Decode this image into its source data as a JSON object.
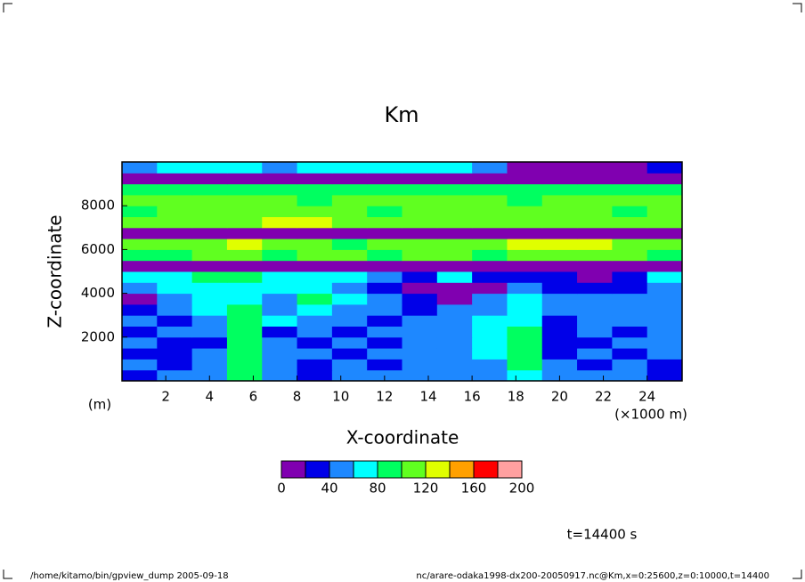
{
  "chart_data": {
    "type": "contourf",
    "title": "Km",
    "xlabel": "X-coordinate",
    "ylabel": "Z-coordinate",
    "xunit": "(×1000 m)",
    "yunit": "(m)",
    "time_label": "t=14400 s",
    "footer_left": "/home/kitamo/bin/gpview_dump  2005-09-18",
    "footer_right": "nc/arare-odaka1998-dx200-20050917.nc@Km,x=0:25600,z=0:10000,t=14400",
    "xlim": [
      0,
      25.6
    ],
    "ylim": [
      0,
      10000
    ],
    "xticks": [
      2,
      4,
      6,
      8,
      10,
      12,
      14,
      16,
      18,
      20,
      22,
      24
    ],
    "yticks": [
      2000,
      4000,
      6000,
      8000
    ],
    "x": [
      0.8,
      2.4,
      4.0,
      5.6,
      7.2,
      8.8,
      10.4,
      12.0,
      13.6,
      15.2,
      16.8,
      18.4,
      20.0,
      21.6,
      23.2,
      24.8
    ],
    "y": [
      250,
      750,
      1250,
      1750,
      2250,
      2750,
      3250,
      3750,
      4250,
      4750,
      5250,
      5750,
      6250,
      6750,
      7250,
      7750,
      8250,
      8750,
      9250,
      9750
    ],
    "z": [
      [
        30,
        50,
        50,
        90,
        50,
        30,
        50,
        50,
        50,
        50,
        50,
        70,
        50,
        50,
        50,
        30
      ],
      [
        50,
        30,
        50,
        90,
        50,
        30,
        50,
        30,
        50,
        50,
        50,
        90,
        50,
        30,
        50,
        30
      ],
      [
        30,
        30,
        50,
        90,
        50,
        50,
        30,
        50,
        50,
        50,
        70,
        90,
        30,
        50,
        30,
        50
      ],
      [
        50,
        30,
        30,
        90,
        50,
        30,
        50,
        30,
        50,
        50,
        70,
        90,
        30,
        30,
        50,
        50
      ],
      [
        30,
        50,
        50,
        90,
        30,
        50,
        30,
        50,
        50,
        50,
        70,
        90,
        30,
        50,
        30,
        50
      ],
      [
        50,
        30,
        50,
        90,
        70,
        50,
        50,
        30,
        50,
        50,
        70,
        70,
        30,
        50,
        50,
        50
      ],
      [
        30,
        50,
        70,
        90,
        50,
        70,
        50,
        50,
        30,
        50,
        50,
        70,
        50,
        50,
        50,
        50
      ],
      [
        10,
        50,
        70,
        70,
        50,
        90,
        70,
        50,
        30,
        10,
        50,
        70,
        50,
        50,
        50,
        50
      ],
      [
        50,
        70,
        70,
        70,
        70,
        70,
        50,
        30,
        10,
        10,
        10,
        50,
        30,
        30,
        30,
        50
      ],
      [
        70,
        70,
        90,
        90,
        70,
        70,
        70,
        50,
        30,
        70,
        30,
        30,
        30,
        10,
        30,
        70
      ],
      [
        10,
        10,
        10,
        10,
        10,
        10,
        10,
        10,
        10,
        10,
        10,
        10,
        10,
        10,
        10,
        10
      ],
      [
        90,
        90,
        110,
        110,
        90,
        110,
        110,
        90,
        110,
        110,
        90,
        110,
        110,
        110,
        110,
        90
      ],
      [
        110,
        110,
        110,
        130,
        110,
        110,
        90,
        110,
        110,
        110,
        110,
        130,
        130,
        130,
        110,
        110
      ],
      [
        10,
        10,
        10,
        10,
        10,
        10,
        10,
        10,
        10,
        10,
        10,
        10,
        10,
        10,
        10,
        10
      ],
      [
        110,
        110,
        110,
        110,
        130,
        130,
        110,
        110,
        110,
        110,
        110,
        110,
        110,
        110,
        110,
        110
      ],
      [
        90,
        110,
        110,
        110,
        110,
        110,
        110,
        90,
        110,
        110,
        110,
        110,
        110,
        110,
        90,
        110
      ],
      [
        110,
        110,
        110,
        110,
        110,
        90,
        110,
        110,
        110,
        110,
        110,
        90,
        110,
        110,
        110,
        110
      ],
      [
        90,
        90,
        90,
        90,
        90,
        90,
        90,
        90,
        90,
        90,
        90,
        90,
        90,
        90,
        90,
        90
      ],
      [
        10,
        10,
        10,
        10,
        10,
        10,
        10,
        10,
        10,
        10,
        10,
        10,
        10,
        10,
        10,
        10
      ],
      [
        50,
        70,
        70,
        70,
        50,
        70,
        70,
        70,
        70,
        70,
        50,
        10,
        10,
        10,
        10,
        30
      ]
    ],
    "levels": [
      0,
      20,
      40,
      60,
      80,
      100,
      120,
      140,
      160,
      180,
      200
    ],
    "colors": [
      "#8000b0",
      "#0000e8",
      "#1e88ff",
      "#00ffff",
      "#00ff60",
      "#60ff20",
      "#e0ff00",
      "#ffa000",
      "#ff0000",
      "#ffa0a0"
    ],
    "colorbar_ticks": [
      0,
      40,
      80,
      120,
      160,
      200
    ]
  }
}
